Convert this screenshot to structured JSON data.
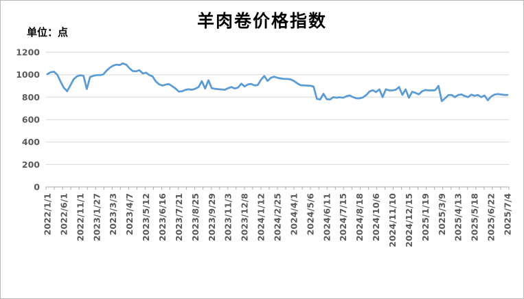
{
  "title": "羊肉卷价格指数",
  "unit_label": "单位：点",
  "colors": {
    "line": "#5B9BD5",
    "grid": "#D9D9D9",
    "axis": "#ABABAB",
    "tick_text": "#595959",
    "title_text": "#000000"
  },
  "chart_data": {
    "type": "line",
    "title": "羊肉卷价格指数",
    "unit": "点",
    "xlabel": "",
    "ylabel": "",
    "ylim": [
      0,
      1200
    ],
    "y_ticks": [
      1200,
      1000,
      800,
      600,
      400,
      200,
      0
    ],
    "grid": true,
    "legend_position": "none",
    "series_name": "羊肉卷价格指数",
    "label_interval": 5,
    "x_labels": [
      "2022/1/1",
      "2022/6/1",
      "2022/11/1",
      "2023/1/27",
      "2023/3/3",
      "2023/4/7",
      "2023/5/12",
      "2023/6/16",
      "2023/7/21",
      "2023/8/25",
      "2023/9/29",
      "2023/11/3",
      "2023/12/8",
      "2024/1/12",
      "2024/2/25",
      "2024/4/1",
      "2024/5/6",
      "2024/6/11",
      "2024/7/15",
      "2024/8/18",
      "2024/10/6",
      "2024/11/10",
      "2024/12/15",
      "2025/1/19",
      "2025/3/9",
      "2025/4/13",
      "2025/5/18",
      "2025/6/22",
      "2025/7/4"
    ],
    "values": [
      1005,
      1022,
      1026,
      1000,
      940,
      884,
      853,
      905,
      960,
      985,
      995,
      990,
      872,
      980,
      990,
      996,
      996,
      1002,
      1035,
      1062,
      1080,
      1090,
      1086,
      1100,
      1089,
      1057,
      1032,
      1030,
      1040,
      1011,
      1018,
      997,
      985,
      940,
      914,
      903,
      912,
      916,
      897,
      877,
      849,
      852,
      866,
      870,
      866,
      875,
      890,
      942,
      876,
      950,
      880,
      874,
      871,
      869,
      866,
      880,
      890,
      877,
      885,
      920,
      895,
      913,
      918,
      905,
      908,
      955,
      988,
      945,
      972,
      982,
      972,
      967,
      963,
      962,
      958,
      944,
      924,
      907,
      905,
      903,
      902,
      894,
      785,
      779,
      830,
      782,
      779,
      800,
      795,
      799,
      795,
      808,
      815,
      800,
      790,
      789,
      797,
      818,
      850,
      862,
      845,
      870,
      800,
      870,
      860,
      860,
      866,
      890,
      820,
      870,
      795,
      848,
      838,
      825,
      852,
      864,
      860,
      860,
      862,
      900,
      765,
      790,
      818,
      820,
      800,
      820,
      824,
      810,
      800,
      822,
      812,
      820,
      800,
      815,
      772,
      806,
      822,
      828,
      824,
      820,
      820
    ]
  }
}
